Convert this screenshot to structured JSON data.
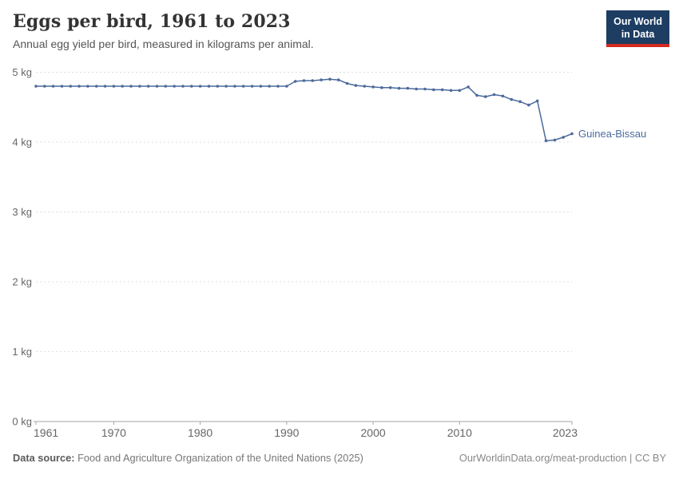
{
  "header": {
    "title": "Eggs per bird, 1961 to 2023",
    "subtitle": "Annual egg yield per bird, measured in kilograms per animal.",
    "logo": {
      "line1": "Our World",
      "line2": "in Data"
    }
  },
  "colors": {
    "line": "#4c6a9c",
    "grid": "#dddddd",
    "axis": "#a5a5a5",
    "tick_text": "#666666",
    "logo_bg": "#1d3d63",
    "logo_accent": "#d42b21"
  },
  "chart_data": {
    "type": "line",
    "title": "Eggs per bird, 1961 to 2023",
    "subtitle": "Annual egg yield per bird, measured in kilograms per animal.",
    "xlabel": "",
    "ylabel": "",
    "unit": "kg",
    "xlim": [
      1961,
      2023
    ],
    "ylim": [
      0,
      5
    ],
    "grid": "horizontal-dashed",
    "legend_position": "end-of-line-label",
    "xticks": [
      1961,
      1970,
      1980,
      1990,
      2000,
      2010,
      2023
    ],
    "yticks": [
      {
        "value": 0,
        "label": "0 kg"
      },
      {
        "value": 1,
        "label": "1 kg"
      },
      {
        "value": 2,
        "label": "2 kg"
      },
      {
        "value": 3,
        "label": "3 kg"
      },
      {
        "value": 4,
        "label": "4 kg"
      },
      {
        "value": 5,
        "label": "5 kg"
      }
    ],
    "series": [
      {
        "name": "Guinea-Bissau",
        "color": "#4c6a9c",
        "x": [
          1961,
          1962,
          1963,
          1964,
          1965,
          1966,
          1967,
          1968,
          1969,
          1970,
          1971,
          1972,
          1973,
          1974,
          1975,
          1976,
          1977,
          1978,
          1979,
          1980,
          1981,
          1982,
          1983,
          1984,
          1985,
          1986,
          1987,
          1988,
          1989,
          1990,
          1991,
          1992,
          1993,
          1994,
          1995,
          1996,
          1997,
          1998,
          1999,
          2000,
          2001,
          2002,
          2003,
          2004,
          2005,
          2006,
          2007,
          2008,
          2009,
          2010,
          2011,
          2012,
          2013,
          2014,
          2015,
          2016,
          2017,
          2018,
          2019,
          2020,
          2021,
          2022,
          2023
        ],
        "values": [
          4.8,
          4.8,
          4.8,
          4.8,
          4.8,
          4.8,
          4.8,
          4.8,
          4.8,
          4.8,
          4.8,
          4.8,
          4.8,
          4.8,
          4.8,
          4.8,
          4.8,
          4.8,
          4.8,
          4.8,
          4.8,
          4.8,
          4.8,
          4.8,
          4.8,
          4.8,
          4.8,
          4.8,
          4.8,
          4.8,
          4.87,
          4.88,
          4.88,
          4.89,
          4.9,
          4.89,
          4.84,
          4.81,
          4.8,
          4.79,
          4.78,
          4.78,
          4.77,
          4.77,
          4.76,
          4.76,
          4.75,
          4.75,
          4.74,
          4.74,
          4.79,
          4.67,
          4.65,
          4.68,
          4.66,
          4.61,
          4.58,
          4.53,
          4.59,
          4.02,
          4.03,
          4.07,
          4.12
        ]
      }
    ]
  },
  "footer": {
    "source_label": "Data source:",
    "source_text": "Food and Agriculture Organization of the United Nations (2025)",
    "credit": "OurWorldinData.org/meat-production | CC BY"
  }
}
